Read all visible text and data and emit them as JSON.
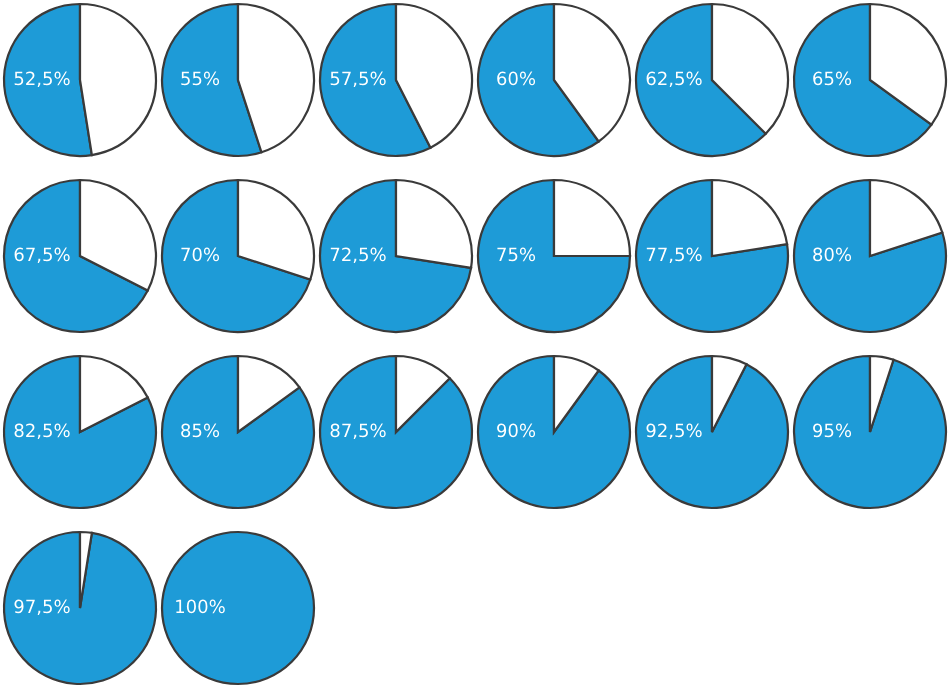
{
  "chart_data": [
    {
      "type": "pie",
      "categories": [
        null,
        null
      ],
      "values": [
        52.5,
        47.5
      ],
      "colors": [
        "#1e9bd7",
        "#ffffff"
      ],
      "value_labels": [
        "52,5%",
        null
      ]
    },
    {
      "type": "pie",
      "categories": [
        null,
        null
      ],
      "values": [
        55,
        45
      ],
      "colors": [
        "#1e9bd7",
        "#ffffff"
      ],
      "value_labels": [
        "55%",
        null
      ]
    },
    {
      "type": "pie",
      "categories": [
        null,
        null
      ],
      "values": [
        57.5,
        42.5
      ],
      "colors": [
        "#1e9bd7",
        "#ffffff"
      ],
      "value_labels": [
        "57,5%",
        null
      ]
    },
    {
      "type": "pie",
      "categories": [
        null,
        null
      ],
      "values": [
        60,
        40
      ],
      "colors": [
        "#1e9bd7",
        "#ffffff"
      ],
      "value_labels": [
        "60%",
        null
      ]
    },
    {
      "type": "pie",
      "categories": [
        null,
        null
      ],
      "values": [
        62.5,
        37.5
      ],
      "colors": [
        "#1e9bd7",
        "#ffffff"
      ],
      "value_labels": [
        "62,5%",
        null
      ]
    },
    {
      "type": "pie",
      "categories": [
        null,
        null
      ],
      "values": [
        65,
        35
      ],
      "colors": [
        "#1e9bd7",
        "#ffffff"
      ],
      "value_labels": [
        "65%",
        null
      ]
    },
    {
      "type": "pie",
      "categories": [
        null,
        null
      ],
      "values": [
        67.5,
        32.5
      ],
      "colors": [
        "#1e9bd7",
        "#ffffff"
      ],
      "value_labels": [
        "67,5%",
        null
      ]
    },
    {
      "type": "pie",
      "categories": [
        null,
        null
      ],
      "values": [
        70,
        30
      ],
      "colors": [
        "#1e9bd7",
        "#ffffff"
      ],
      "value_labels": [
        "70%",
        null
      ]
    },
    {
      "type": "pie",
      "categories": [
        null,
        null
      ],
      "values": [
        72.5,
        27.5
      ],
      "colors": [
        "#1e9bd7",
        "#ffffff"
      ],
      "value_labels": [
        "72,5%",
        null
      ]
    },
    {
      "type": "pie",
      "categories": [
        null,
        null
      ],
      "values": [
        75,
        25
      ],
      "colors": [
        "#1e9bd7",
        "#ffffff"
      ],
      "value_labels": [
        "75%",
        null
      ]
    },
    {
      "type": "pie",
      "categories": [
        null,
        null
      ],
      "values": [
        77.5,
        22.5
      ],
      "colors": [
        "#1e9bd7",
        "#ffffff"
      ],
      "value_labels": [
        "77,5%",
        null
      ]
    },
    {
      "type": "pie",
      "categories": [
        null,
        null
      ],
      "values": [
        80,
        20
      ],
      "colors": [
        "#1e9bd7",
        "#ffffff"
      ],
      "value_labels": [
        "80%",
        null
      ]
    },
    {
      "type": "pie",
      "categories": [
        null,
        null
      ],
      "values": [
        82.5,
        17.5
      ],
      "colors": [
        "#1e9bd7",
        "#ffffff"
      ],
      "value_labels": [
        "82,5%",
        null
      ]
    },
    {
      "type": "pie",
      "categories": [
        null,
        null
      ],
      "values": [
        85,
        15
      ],
      "colors": [
        "#1e9bd7",
        "#ffffff"
      ],
      "value_labels": [
        "85%",
        null
      ]
    },
    {
      "type": "pie",
      "categories": [
        null,
        null
      ],
      "values": [
        87.5,
        12.5
      ],
      "colors": [
        "#1e9bd7",
        "#ffffff"
      ],
      "value_labels": [
        "87,5%",
        null
      ]
    },
    {
      "type": "pie",
      "categories": [
        null,
        null
      ],
      "values": [
        90,
        10
      ],
      "colors": [
        "#1e9bd7",
        "#ffffff"
      ],
      "value_labels": [
        "90%",
        null
      ]
    },
    {
      "type": "pie",
      "categories": [
        null,
        null
      ],
      "values": [
        92.5,
        7.5
      ],
      "colors": [
        "#1e9bd7",
        "#ffffff"
      ],
      "value_labels": [
        "92,5%",
        null
      ]
    },
    {
      "type": "pie",
      "categories": [
        null,
        null
      ],
      "values": [
        95,
        5
      ],
      "colors": [
        "#1e9bd7",
        "#ffffff"
      ],
      "value_labels": [
        "95%",
        null
      ]
    },
    {
      "type": "pie",
      "categories": [
        null,
        null
      ],
      "values": [
        97.5,
        2.5
      ],
      "colors": [
        "#1e9bd7",
        "#ffffff"
      ],
      "value_labels": [
        "97,5%",
        null
      ]
    },
    {
      "type": "pie",
      "categories": [
        null
      ],
      "values": [
        100
      ],
      "colors": [
        "#1e9bd7"
      ],
      "value_labels": [
        "100%"
      ]
    }
  ]
}
